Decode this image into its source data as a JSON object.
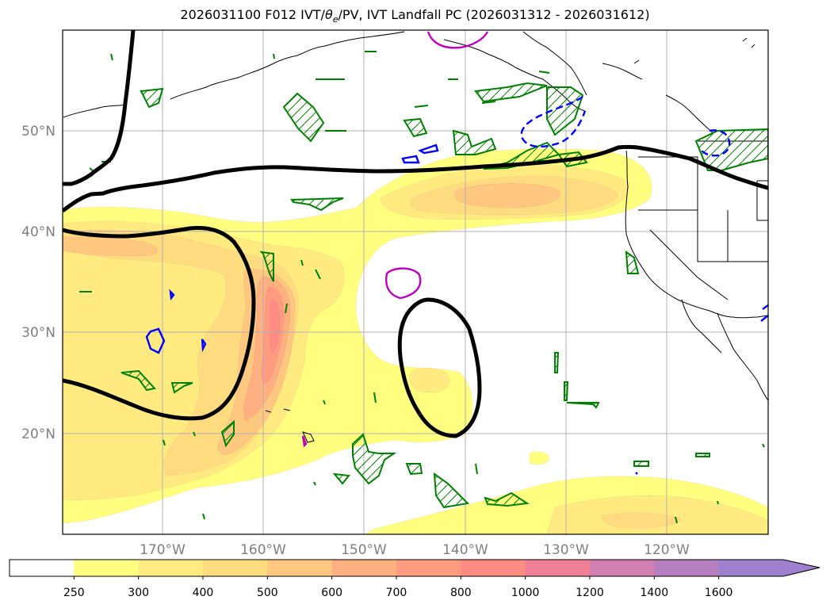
{
  "title": {
    "prefix": "2026031100 F012 IVT/",
    "theta": "θ",
    "theta_sub": "e",
    "suffix": "/PV, IVT Landfall PC (2026031312 - 2026031612)"
  },
  "map": {
    "lon_ticks": [
      "170°W",
      "160°W",
      "150°W",
      "140°W",
      "130°W",
      "120°W"
    ],
    "lat_ticks": [
      "50°N",
      "40°N",
      "30°N",
      "20°N"
    ],
    "frame_color": "#000000",
    "grid_color": "#b0b0b0"
  },
  "colorbar": {
    "labels": [
      "250",
      "300",
      "400",
      "500",
      "600",
      "700",
      "800",
      "1000",
      "1200",
      "1400",
      "1600"
    ],
    "colors": [
      "#ffffff",
      "#ffff80",
      "#ffeb80",
      "#ffdc80",
      "#ffc880",
      "#ffb080",
      "#ff9c80",
      "#ff8c80",
      "#f07f96",
      "#d07fb0",
      "#b67fc0",
      "#9f80cf"
    ]
  },
  "chart_data": {
    "type": "heatmap",
    "variable": "IVT",
    "levels": [
      250,
      300,
      400,
      500,
      600,
      700,
      800,
      1000,
      1200,
      1400,
      1600
    ],
    "extend": "max",
    "lon_range": [
      -180,
      -110
    ],
    "lat_range": [
      10,
      60
    ],
    "overlays": {
      "theta_e_contour_color": "#000000",
      "pv_positive_color": "#008000",
      "pv_negative_color": "#0000ff",
      "magenta_contour_color": "#c000c0"
    }
  }
}
